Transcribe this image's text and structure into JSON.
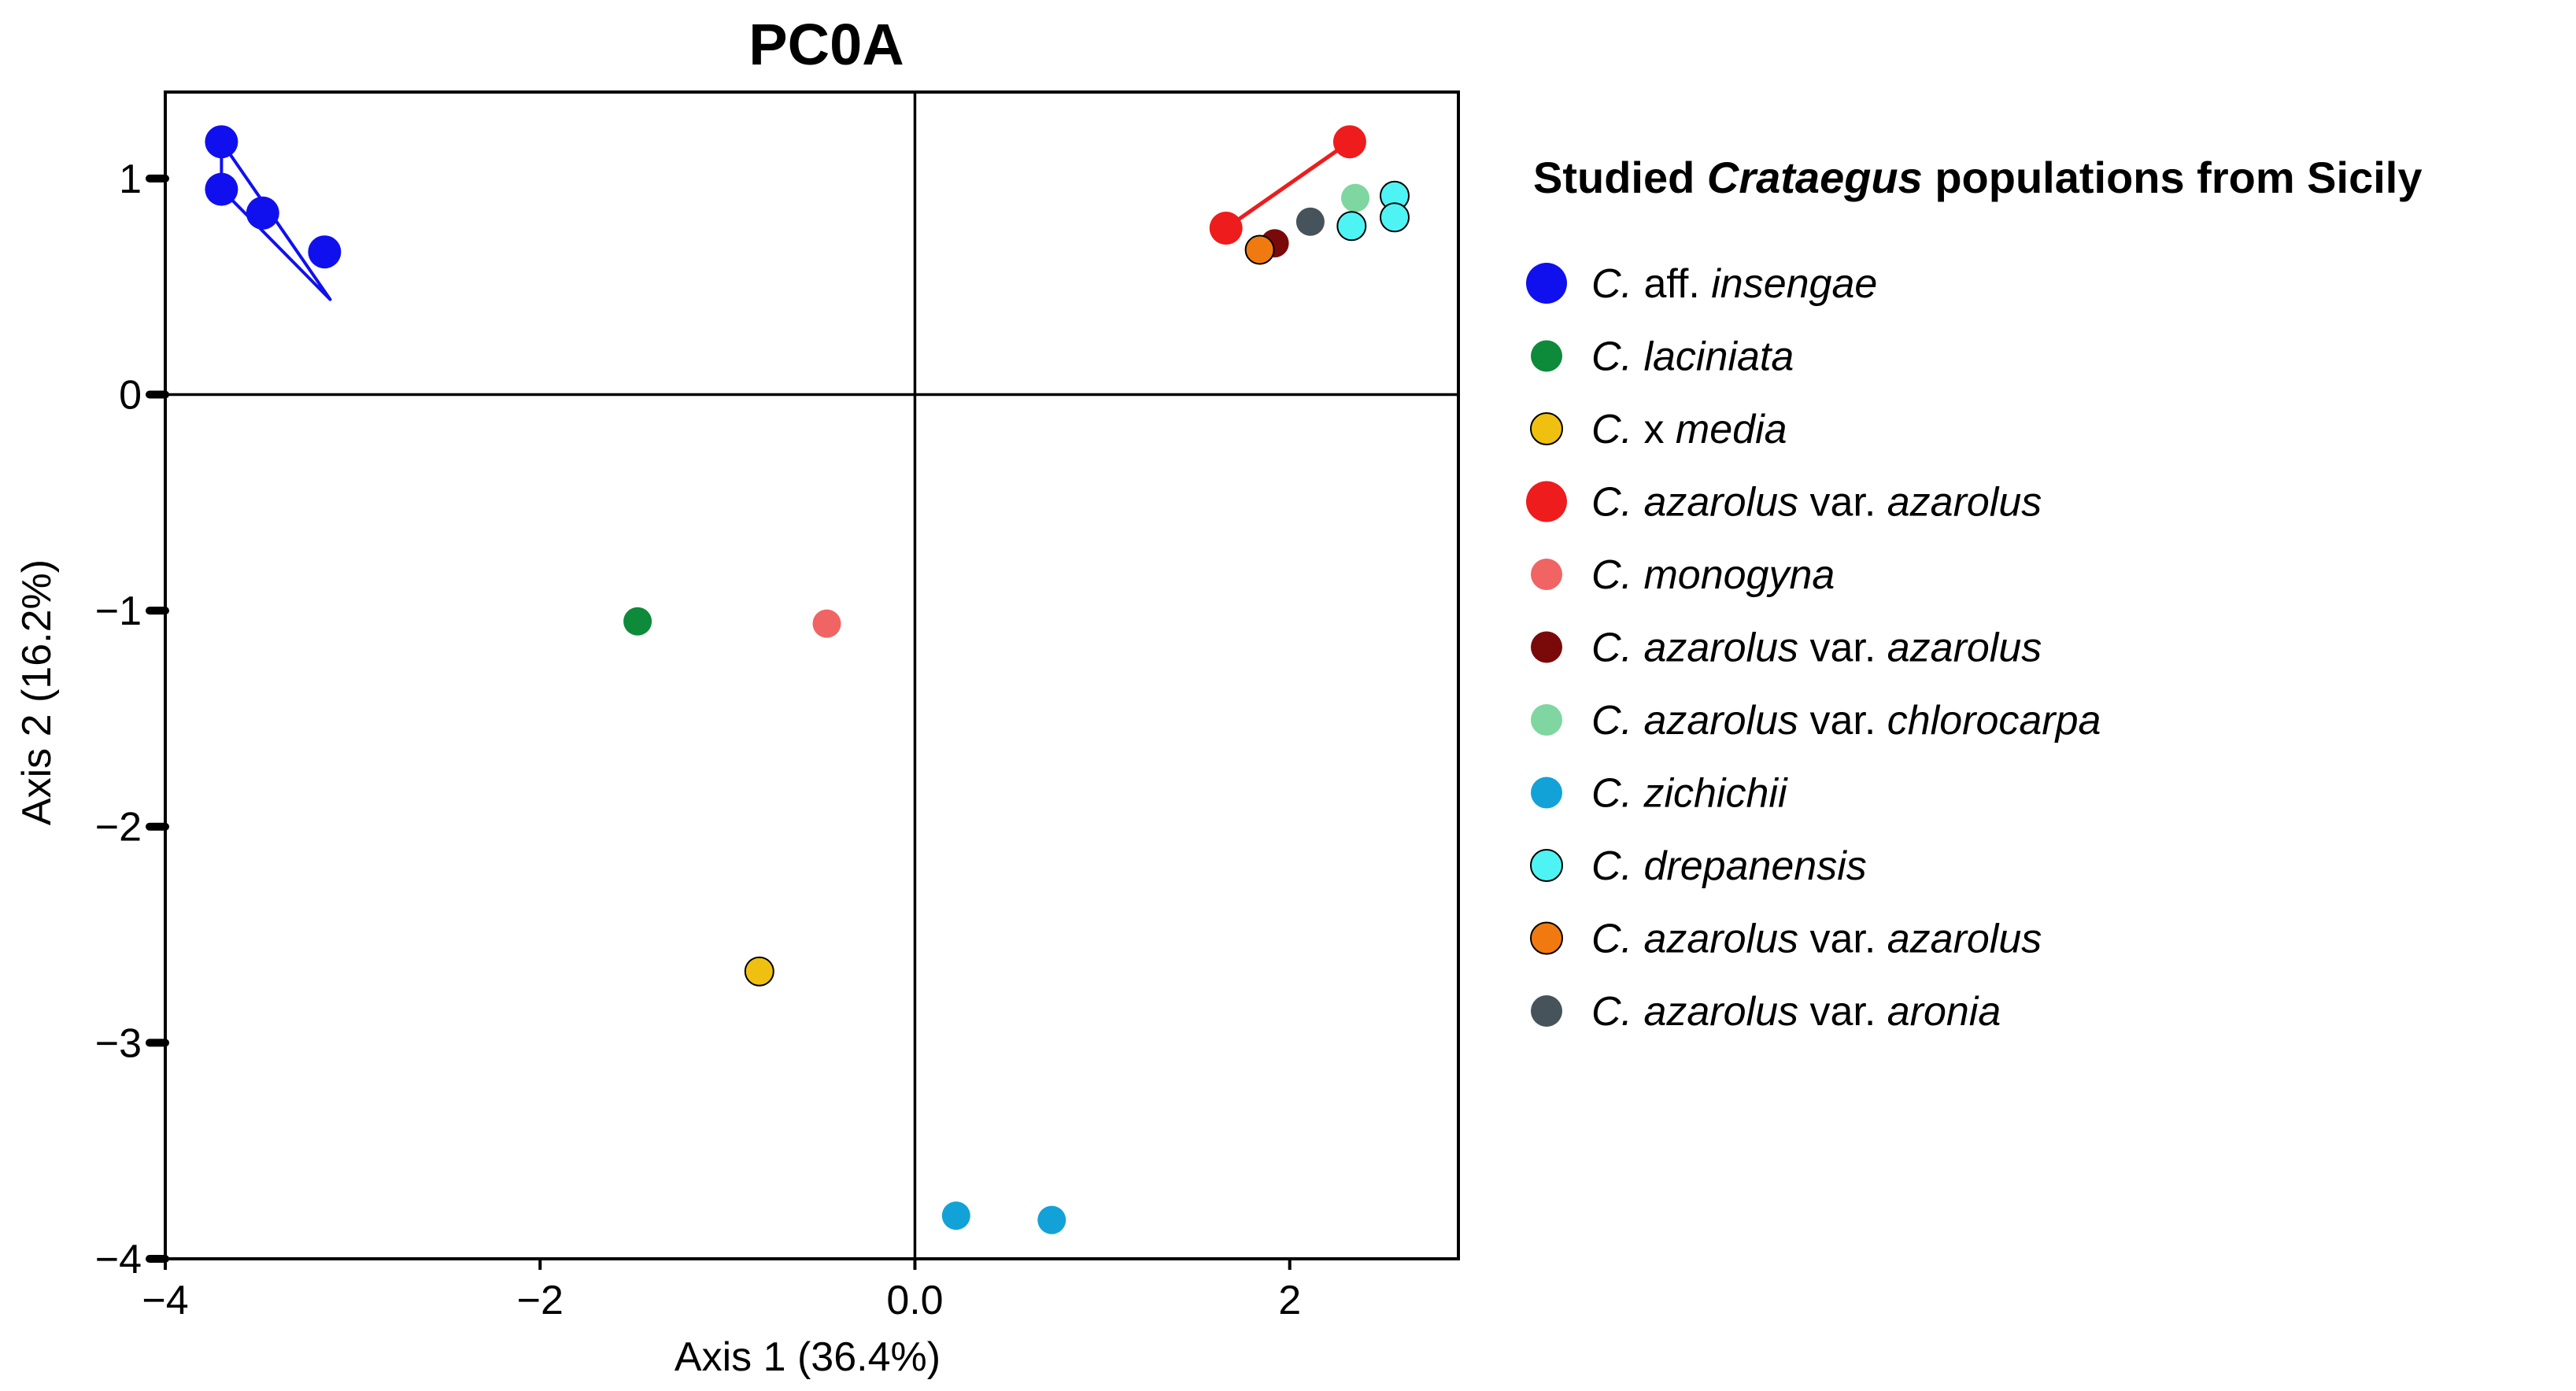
{
  "chart_data": {
    "type": "scatter",
    "title": "PC0A",
    "xlabel": "Axis 1 (36.4%)",
    "ylabel": "Axis 2 (16.2%)",
    "xlim": [
      -4.0,
      2.9
    ],
    "ylim": [
      -4.0,
      1.4
    ],
    "x_ticks": [
      -4,
      -2,
      0,
      2
    ],
    "x_tick_labels": [
      "−4",
      "−2",
      "0.0",
      "2"
    ],
    "y_ticks": [
      1,
      0,
      -1,
      -2,
      -3,
      -4
    ],
    "y_tick_labels": [
      "1",
      "0",
      "−1",
      "−2",
      "−3",
      "−4"
    ],
    "reference_lines": {
      "x": 0,
      "y": 0
    },
    "legend": {
      "title_prefix": "Studied",
      "title_italic": "Crataegus",
      "title_suffix": "populations from Sicily",
      "placement": "right"
    },
    "series": [
      {
        "key": "aff_insengae",
        "label_parts": [
          [
            "C.",
            true
          ],
          [
            " aff. ",
            false
          ],
          [
            "insengae",
            true
          ]
        ],
        "color": "#1010ee",
        "outline": "none",
        "size": "large",
        "points": [
          [
            -3.7,
            1.17
          ],
          [
            -3.7,
            0.95
          ],
          [
            -3.48,
            0.84
          ],
          [
            -3.15,
            0.66
          ]
        ],
        "hull": [
          [
            -3.7,
            1.17
          ],
          [
            -3.12,
            0.44
          ],
          [
            -3.7,
            0.95
          ]
        ]
      },
      {
        "key": "laciniata",
        "label_parts": [
          [
            "C.",
            true
          ],
          [
            " ",
            false
          ],
          [
            "laciniata",
            true
          ]
        ],
        "color": "#0d8a3a",
        "outline": "none",
        "size": "medium",
        "points": [
          [
            -1.48,
            -1.05
          ]
        ]
      },
      {
        "key": "x_media",
        "label_parts": [
          [
            "C.",
            true
          ],
          [
            " x ",
            false
          ],
          [
            "media",
            true
          ]
        ],
        "color": "#f0c010",
        "outline": "black",
        "size": "medium",
        "points": [
          [
            -0.83,
            -2.67
          ]
        ]
      },
      {
        "key": "azarolus_red",
        "label_parts": [
          [
            "C.",
            true
          ],
          [
            " ",
            false
          ],
          [
            "azarolus",
            true
          ],
          [
            " var. ",
            false
          ],
          [
            "azarolus",
            true
          ]
        ],
        "color": "#ee1c1c",
        "outline": "none",
        "size": "large",
        "points": [
          [
            1.66,
            0.77
          ],
          [
            2.32,
            1.17
          ]
        ],
        "hull": [
          [
            1.66,
            0.77
          ],
          [
            2.32,
            1.17
          ]
        ]
      },
      {
        "key": "monogyna",
        "label_parts": [
          [
            "C.",
            true
          ],
          [
            " ",
            false
          ],
          [
            "monogyna",
            true
          ]
        ],
        "color": "#f06464",
        "outline": "none",
        "size": "medium",
        "points": [
          [
            -0.47,
            -1.06
          ]
        ]
      },
      {
        "key": "azarolus_darkred",
        "label_parts": [
          [
            "C.",
            true
          ],
          [
            " ",
            false
          ],
          [
            "azarolus",
            true
          ],
          [
            " var. ",
            false
          ],
          [
            "azarolus",
            true
          ]
        ],
        "color": "#7a0a0a",
        "outline": "none",
        "size": "medium",
        "points": [
          [
            1.92,
            0.7
          ]
        ]
      },
      {
        "key": "chlorocarpa",
        "label_parts": [
          [
            "C.",
            true
          ],
          [
            " ",
            false
          ],
          [
            "azarolus",
            true
          ],
          [
            " var. ",
            false
          ],
          [
            "chlorocarpa",
            true
          ]
        ],
        "color": "#7fd6a0",
        "outline": "none",
        "size": "medium",
        "points": [
          [
            2.35,
            0.91
          ]
        ]
      },
      {
        "key": "zichichii",
        "label_parts": [
          [
            "C.",
            true
          ],
          [
            " ",
            false
          ],
          [
            "zichichii",
            true
          ]
        ],
        "color": "#12a2d8",
        "outline": "none",
        "size": "medium",
        "points": [
          [
            0.22,
            -3.8
          ],
          [
            0.73,
            -3.82
          ]
        ]
      },
      {
        "key": "drepanensis",
        "label_parts": [
          [
            "C.",
            true
          ],
          [
            " ",
            false
          ],
          [
            "drepanensis",
            true
          ]
        ],
        "color": "#4ef4f4",
        "outline": "black",
        "size": "medium",
        "points": [
          [
            2.56,
            0.92
          ],
          [
            2.56,
            0.82
          ],
          [
            2.33,
            0.78
          ]
        ]
      },
      {
        "key": "azarolus_orange",
        "label_parts": [
          [
            "C.",
            true
          ],
          [
            " ",
            false
          ],
          [
            "azarolus",
            true
          ],
          [
            " var. ",
            false
          ],
          [
            "azarolus",
            true
          ]
        ],
        "color": "#f07a10",
        "outline": "black",
        "size": "medium",
        "points": [
          [
            1.84,
            0.67
          ]
        ]
      },
      {
        "key": "aronia",
        "label_parts": [
          [
            "C.",
            true
          ],
          [
            " ",
            false
          ],
          [
            "azarolus",
            true
          ],
          [
            " var. ",
            false
          ],
          [
            "aronia",
            true
          ]
        ],
        "color": "#46535a",
        "outline": "none",
        "size": "medium",
        "points": [
          [
            2.11,
            0.8
          ]
        ]
      }
    ]
  }
}
